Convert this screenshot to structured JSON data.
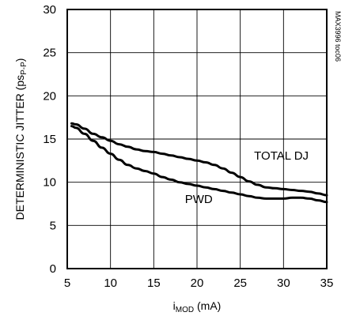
{
  "chart_data": {
    "type": "line",
    "title": "",
    "xlabel": "iMOD (mA)",
    "xlabel_parts": {
      "main": "i",
      "sub": "MOD",
      "rest": " (mA)"
    },
    "ylabel": "DETERMINISTIC JITTER (psP-P)",
    "ylabel_parts": {
      "main": "DETERMINISTIC JITTER (ps",
      "sub": "P-P",
      "rest": ")"
    },
    "xlim": [
      5,
      35
    ],
    "ylim": [
      0,
      30
    ],
    "xticks": [
      5,
      10,
      15,
      20,
      25,
      30,
      35
    ],
    "yticks": [
      0,
      5,
      10,
      15,
      20,
      25,
      30
    ],
    "grid": true,
    "legend": "none",
    "series": [
      {
        "name": "TOTAL DJ",
        "x": [
          5.5,
          6,
          7,
          8,
          9,
          10,
          11,
          12,
          13,
          14,
          15,
          16,
          17,
          18,
          19,
          20,
          21,
          22,
          23,
          24,
          25,
          26,
          27,
          28,
          29,
          30,
          31,
          32,
          33,
          34,
          35
        ],
        "y": [
          16.8,
          16.7,
          16.2,
          15.6,
          15.2,
          14.8,
          14.4,
          14.1,
          13.8,
          13.6,
          13.5,
          13.3,
          13.1,
          12.9,
          12.7,
          12.5,
          12.3,
          12.0,
          11.6,
          11.1,
          10.6,
          10.1,
          9.7,
          9.4,
          9.3,
          9.2,
          9.1,
          9.0,
          8.9,
          8.7,
          8.5
        ]
      },
      {
        "name": "PWD",
        "x": [
          5.5,
          6,
          7,
          8,
          9,
          10,
          11,
          12,
          13,
          14,
          15,
          16,
          17,
          18,
          19,
          20,
          21,
          22,
          23,
          24,
          25,
          26,
          27,
          28,
          29,
          30,
          31,
          32,
          33,
          34,
          35
        ],
        "y": [
          16.5,
          16.3,
          15.6,
          14.8,
          14.0,
          13.3,
          12.6,
          12.0,
          11.6,
          11.3,
          11.0,
          10.6,
          10.3,
          10.0,
          9.8,
          9.6,
          9.4,
          9.2,
          9.0,
          8.8,
          8.6,
          8.4,
          8.2,
          8.1,
          8.1,
          8.1,
          8.2,
          8.2,
          8.1,
          7.9,
          7.7
        ]
      }
    ],
    "annotations": [
      {
        "text": "TOTAL DJ",
        "x": 26.6,
        "y": 12.6
      },
      {
        "text": "PWD",
        "x": 18.6,
        "y": 7.6
      }
    ],
    "side_note": "MAX3996 toc06"
  }
}
